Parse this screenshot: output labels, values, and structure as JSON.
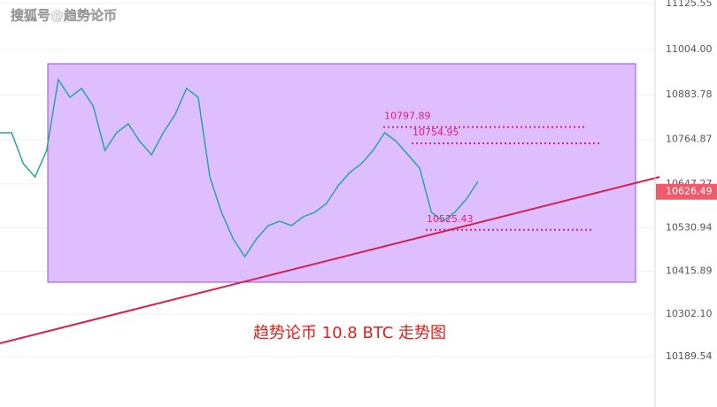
{
  "chart_data": {
    "type": "line",
    "watermark": "搜狐号@趋势论币",
    "title": "趋势论币 10.8  BTC 走势图",
    "categories": [
      null,
      null,
      null,
      null,
      null,
      null,
      null,
      null,
      null,
      null,
      null,
      null,
      null,
      null,
      null,
      null,
      null,
      null,
      null,
      null,
      null,
      null,
      null,
      null,
      null,
      null,
      null,
      null,
      null,
      null,
      null,
      null,
      null,
      null,
      null,
      null,
      null,
      null,
      null,
      null,
      null,
      null
    ],
    "series": [
      {
        "color": "#26a69a",
        "values": [
          10783.0,
          10783.0,
          10700.9,
          10665.7,
          10736.1,
          10923.8,
          10876.9,
          10900.3,
          10853.4,
          10736.1,
          10783.0,
          10806.5,
          10759.6,
          10724.4,
          10783.0,
          10829.9,
          10900.3,
          10876.9,
          10665.7,
          10571.9,
          10501.5,
          10454.6,
          10501.5,
          10536.7,
          10548.4,
          10536.7,
          10560.2,
          10571.9,
          10595.4,
          10642.3,
          10677.5,
          10700.9,
          10736.1,
          10783.0,
          10759.6,
          10724.4,
          10689.2,
          10571.9,
          10548.4,
          10571.9,
          10607.1,
          10654.0
        ]
      }
    ],
    "levels": [
      10797.89,
      10754.95,
      10525.43
    ],
    "last_price": 10626.49,
    "ylim": [
      10055.8,
      11134.9
    ],
    "yticks": [
      11125.55,
      {
        "value": 11004,
        "label": "11004.00"
      },
      10883.78,
      10764.87,
      10647.27,
      10530.94,
      10415.89,
      {
        "value": 10302.1,
        "label": "10302.10"
      },
      10189.54
    ],
    "grid": true
  }
}
